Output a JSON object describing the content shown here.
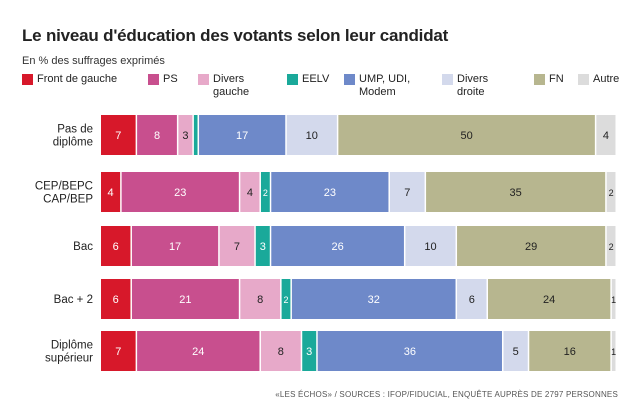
{
  "chart_data": {
    "type": "bar",
    "stacked": true,
    "orientation": "horizontal",
    "title": "Le niveau d'éducation des votants selon leur candidat",
    "subtitle": "En % des suffrages exprimés",
    "categories": [
      "Pas de\ndiplôme",
      "CEP/BEPC\nCAP/BEP",
      "Bac",
      "Bac + 2",
      "Diplôme\nsupérieur"
    ],
    "series": [
      {
        "name": "Front de gauche",
        "color": "#d7182a",
        "values": [
          7,
          4,
          6,
          6,
          7
        ]
      },
      {
        "name": "PS",
        "color": "#c84f8e",
        "values": [
          8,
          23,
          17,
          21,
          24
        ]
      },
      {
        "name": "Divers\ngauche",
        "color": "#e7a9c9",
        "values": [
          3,
          4,
          7,
          8,
          8
        ]
      },
      {
        "name": "EELV",
        "color": "#1aa99a",
        "values": [
          1,
          2,
          3,
          2,
          3
        ]
      },
      {
        "name": "UMP, UDI,\nModem",
        "color": "#6e89c9",
        "values": [
          17,
          23,
          26,
          32,
          36
        ]
      },
      {
        "name": "Divers\ndroite",
        "color": "#d3d9ec",
        "values": [
          10,
          7,
          10,
          6,
          5
        ]
      },
      {
        "name": "FN",
        "color": "#b7b68f",
        "values": [
          50,
          35,
          29,
          24,
          16
        ]
      },
      {
        "name": "Autre",
        "color": "#dcdcdc",
        "values": [
          4,
          2,
          2,
          1,
          1
        ]
      }
    ],
    "value_labels": [
      [
        "7",
        "8",
        "3",
        "",
        "17",
        "10",
        "50",
        "4"
      ],
      [
        "4",
        "23",
        "4",
        "2",
        "23",
        "7",
        "35",
        "2"
      ],
      [
        "6",
        "17",
        "7",
        "3",
        "26",
        "10",
        "29",
        "2"
      ],
      [
        "6",
        "21",
        "8",
        "2",
        "32",
        "6",
        "24",
        "1"
      ],
      [
        "7",
        "24",
        "8",
        "3",
        "36",
        "5",
        "16",
        "1"
      ]
    ],
    "xlim": [
      0,
      100
    ],
    "grid": false,
    "legend": "top"
  },
  "source": "«LES ÉCHOS» / SOURCES : IFOP/FIDUCIAL, ENQUÊTE AUPRÈS DE 2797 PERSONNES"
}
